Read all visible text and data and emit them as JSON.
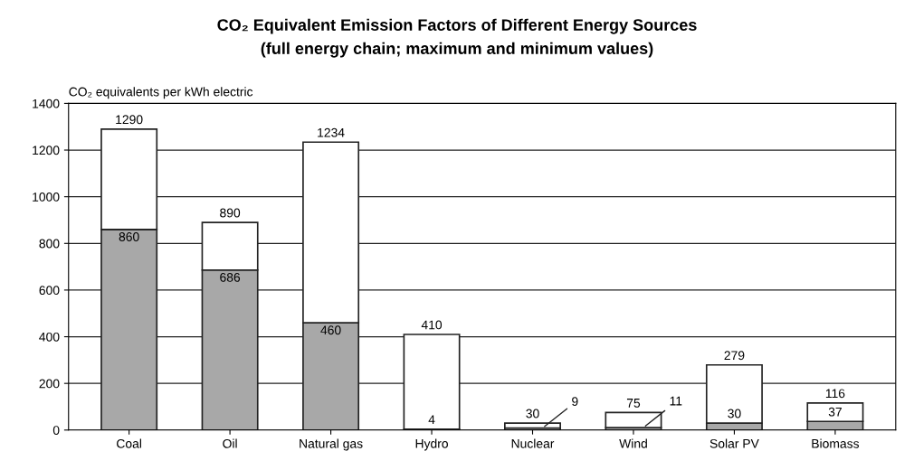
{
  "chart_data": {
    "type": "bar",
    "title": "CO₂ Equivalent Emission Factors of Different Energy Sources",
    "subtitle": "(full energy chain; maximum and minimum values)",
    "ylabel": "CO₂ equivalents per kWh electric",
    "categories": [
      "Coal",
      "Oil",
      "Natural gas",
      "Hydro",
      "Nuclear",
      "Wind",
      "Solar PV",
      "Biomass"
    ],
    "stacked": true,
    "series": [
      {
        "color": "#a8a8a8",
        "values": [
          860,
          686,
          460,
          4,
          9,
          11,
          30,
          37
        ],
        "value_labels": [
          "860",
          "686",
          "460",
          "4",
          "9",
          "11",
          "30",
          "37"
        ]
      },
      {
        "color": "#ffffff",
        "values": [
          430,
          204,
          774,
          406,
          21,
          64,
          249,
          79
        ]
      }
    ],
    "totals": [
      "1290",
      "890",
      "1234",
      "410",
      "30",
      "75",
      "279",
      "116"
    ],
    "ylim": [
      0,
      1400
    ],
    "yticks": [
      0,
      200,
      400,
      600,
      800,
      1000,
      1200,
      1400
    ],
    "grid": "y"
  }
}
